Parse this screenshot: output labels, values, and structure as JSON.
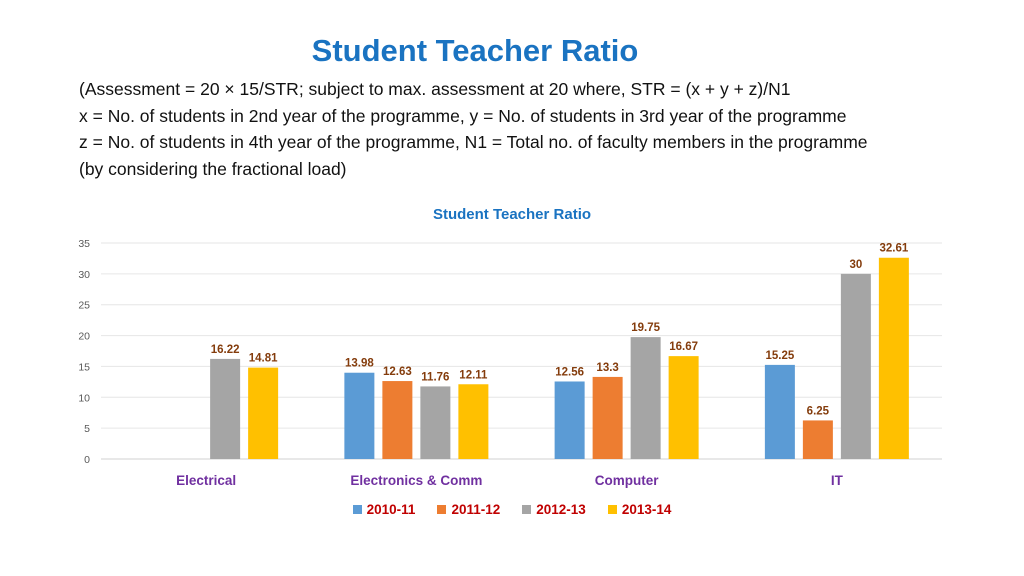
{
  "slide": {
    "title": "Student Teacher Ratio",
    "description_lines": [
      "(Assessment = 20 × 15/STR; subject to max. assessment at 20 where, STR = (x + y + z)/N1",
      "x = No. of students in 2nd year of the programme, y = No. of students in 3rd year of the programme",
      "z = No. of students in 4th year of the programme, N1 = Total no. of faculty members in the programme",
      "(by considering the fractional load)"
    ]
  },
  "colors": {
    "2010-11": "#5b9bd5",
    "2011-12": "#ed7d31",
    "2012-13": "#a5a5a5",
    "2013-14": "#ffc000",
    "category_label": "#7030a0",
    "data_label": "#843c0c",
    "legend_text": "#c00000",
    "title": "#1a73c1"
  },
  "chart_data": {
    "type": "bar",
    "title": "Student Teacher Ratio",
    "xlabel": "",
    "ylabel": "",
    "ylim": [
      0,
      35
    ],
    "yticks": [
      0,
      5,
      10,
      15,
      20,
      25,
      30,
      35
    ],
    "grid": true,
    "legend_position": "bottom",
    "categories": [
      "Electrical",
      "Electronics & Comm",
      "Computer",
      "IT"
    ],
    "series": [
      {
        "name": "2010-11",
        "values": [
          null,
          13.98,
          12.56,
          15.25
        ]
      },
      {
        "name": "2011-12",
        "values": [
          null,
          12.63,
          13.3,
          6.25
        ]
      },
      {
        "name": "2012-13",
        "values": [
          16.22,
          11.76,
          19.75,
          30
        ]
      },
      {
        "name": "2013-14",
        "values": [
          14.81,
          12.11,
          16.67,
          32.61
        ]
      }
    ]
  }
}
